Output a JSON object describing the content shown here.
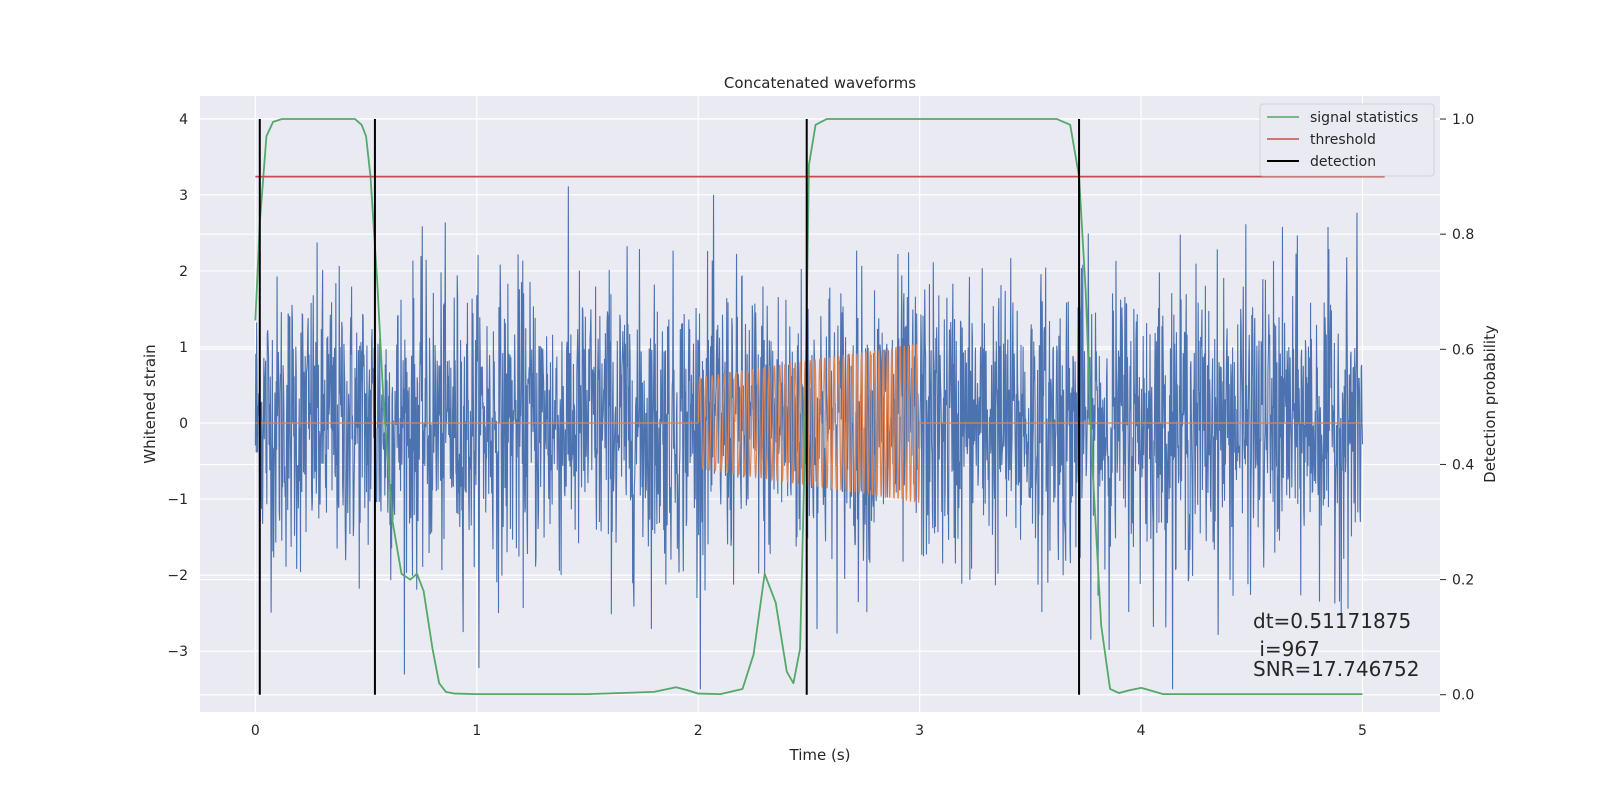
{
  "chart_data": {
    "type": "line",
    "title": "Concatenated waveforms",
    "xlabel": "Time (s)",
    "ylabel": "Whitened strain",
    "y2label": "Detection probability",
    "xlim": [
      -0.25,
      5.35
    ],
    "ylim": [
      -3.8,
      4.3
    ],
    "y2lim": [
      -0.03,
      1.04
    ],
    "xticks": [
      0,
      1,
      2,
      3,
      4,
      5
    ],
    "yticks": [
      -3,
      -2,
      -1,
      0,
      1,
      2,
      3,
      4
    ],
    "y2ticks": [
      0.0,
      0.2,
      0.4,
      0.6,
      0.8,
      1.0
    ],
    "xtick_labels": [
      "0",
      "1",
      "2",
      "3",
      "4",
      "5"
    ],
    "ytick_labels": [
      "−3",
      "−2",
      "−1",
      "0",
      "1",
      "2",
      "3",
      "4"
    ],
    "y2tick_labels": [
      "0.0",
      "0.2",
      "0.4",
      "0.6",
      "0.8",
      "1.0"
    ],
    "grid": true,
    "legend_position": "top-right",
    "colors": {
      "background": "#eaeaf2",
      "noise": "#4c72b0",
      "waveform": "#dd8452",
      "signal_statistics": "#55a868",
      "threshold": "#c44e52",
      "detection": "#000000"
    },
    "legend": [
      {
        "name": "signal statistics",
        "color": "#55a868"
      },
      {
        "name": "threshold",
        "color": "#c44e52"
      },
      {
        "name": "detection",
        "color": "#000000"
      }
    ],
    "series": [
      {
        "name": "signal statistics",
        "axis": "right",
        "x": [
          0.0,
          0.02,
          0.05,
          0.08,
          0.12,
          0.2,
          0.3,
          0.4,
          0.45,
          0.48,
          0.5,
          0.52,
          0.55,
          0.58,
          0.62,
          0.66,
          0.7,
          0.73,
          0.76,
          0.8,
          0.83,
          0.86,
          0.9,
          1.0,
          1.5,
          1.8,
          1.9,
          1.95,
          2.0,
          2.1,
          2.2,
          2.25,
          2.3,
          2.35,
          2.4,
          2.43,
          2.46,
          2.48,
          2.5,
          2.53,
          2.58,
          2.7,
          3.0,
          3.5,
          3.62,
          3.68,
          3.72,
          3.75,
          3.78,
          3.82,
          3.86,
          3.9,
          3.95,
          4.0,
          4.1,
          5.0
        ],
        "y": [
          0.65,
          0.82,
          0.97,
          0.995,
          1.0,
          1.0,
          1.0,
          1.0,
          1.0,
          0.99,
          0.97,
          0.9,
          0.72,
          0.5,
          0.3,
          0.21,
          0.2,
          0.21,
          0.18,
          0.08,
          0.02,
          0.005,
          0.002,
          0.001,
          0.001,
          0.005,
          0.013,
          0.008,
          0.002,
          0.001,
          0.01,
          0.07,
          0.21,
          0.16,
          0.04,
          0.02,
          0.08,
          0.4,
          0.92,
          0.99,
          1.0,
          1.0,
          1.0,
          1.0,
          1.0,
          0.99,
          0.9,
          0.7,
          0.4,
          0.12,
          0.01,
          0.003,
          0.008,
          0.012,
          0.001,
          0.001
        ]
      },
      {
        "name": "threshold",
        "axis": "right",
        "x": [
          0.0,
          5.1
        ],
        "y": [
          0.9,
          0.9
        ]
      },
      {
        "name": "detection",
        "axis": "right",
        "type": "vlines",
        "x": [
          0.02,
          0.54,
          2.49,
          3.72
        ],
        "ymin": 0.0,
        "ymax": 1.0
      }
    ],
    "annotations": [
      "dt=0.51171875",
      " i=967",
      "SNR=17.746752"
    ]
  }
}
